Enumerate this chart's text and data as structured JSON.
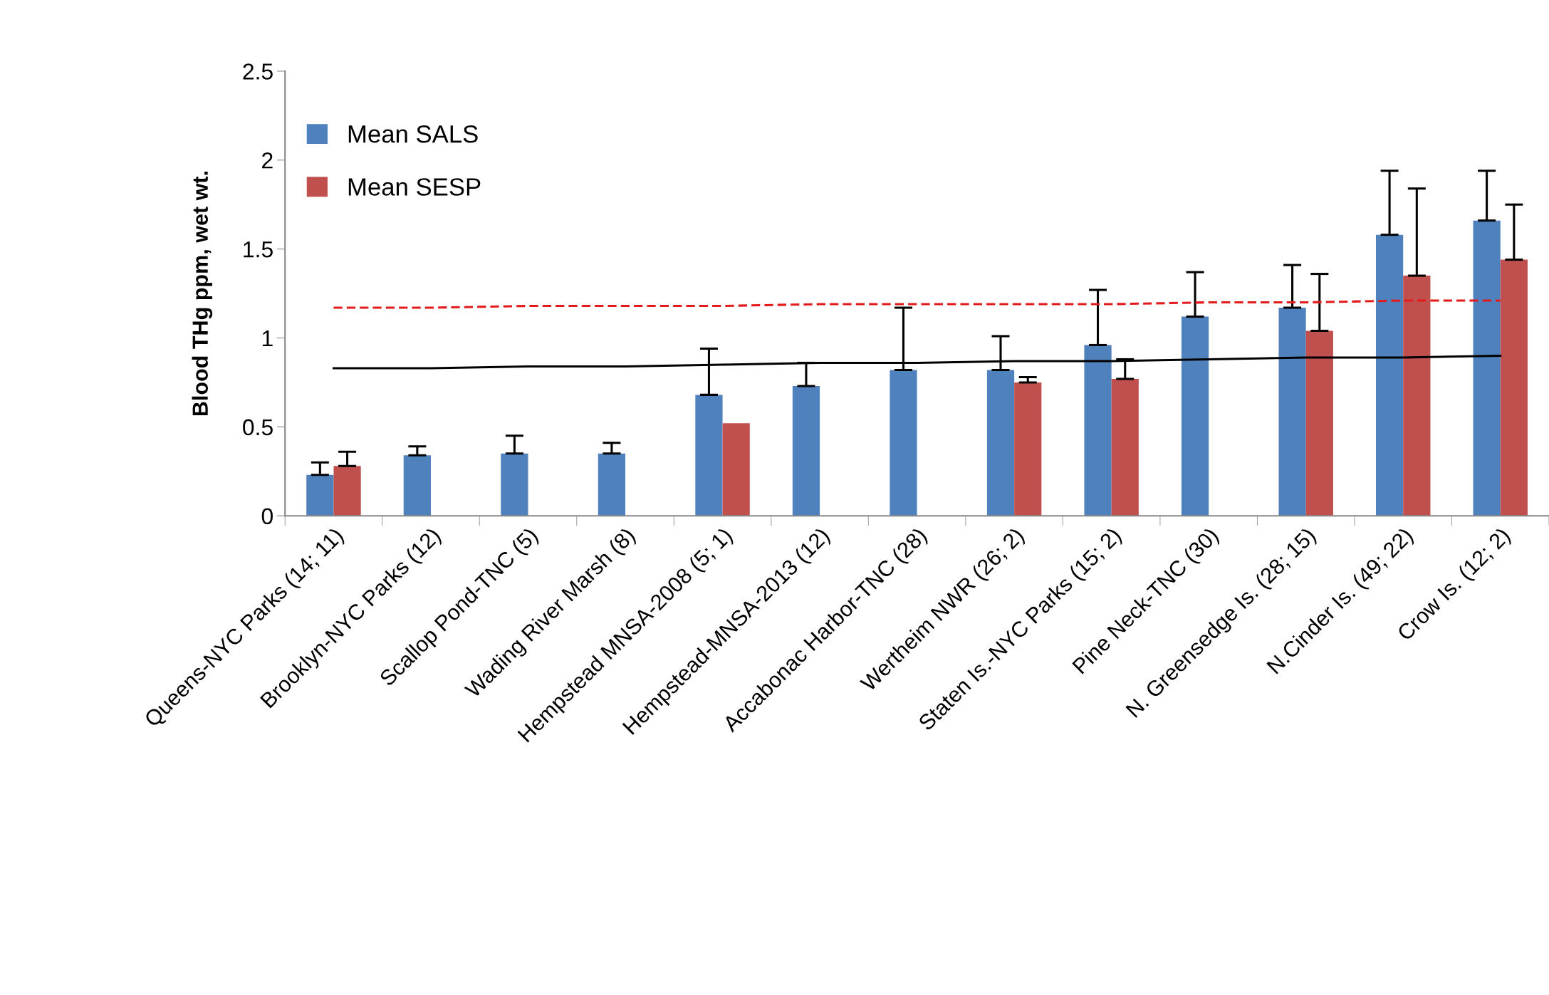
{
  "chart_data": {
    "type": "bar",
    "ylabel": "Blood THg ppm, wet wt.",
    "categories": [
      "Queens-NYC Parks (14; 11)",
      "Brooklyn-NYC Parks (12)",
      "Scallop Pond-TNC (5)",
      "Wading River Marsh (8)",
      "Hempstead MNSA-2008 (5; 1)",
      "Hempstead-MNSA-2013 (12)",
      "Accabonac Harbor-TNC (28)",
      "Wertheim NWR (26; 2)",
      "Staten Is.-NYC Parks (15; 2)",
      "Pine Neck-TNC (30)",
      "N. Greensedge Is. (28; 15)",
      "N.Cinder Is. (49; 22)",
      "Crow Is. (12; 2)"
    ],
    "series": [
      {
        "name": "Mean SALS",
        "color": "#4f81bd",
        "values": [
          0.23,
          0.34,
          0.35,
          0.35,
          0.68,
          0.73,
          0.82,
          0.82,
          0.96,
          1.12,
          1.17,
          1.58,
          1.66
        ],
        "errors": [
          [
            0.23,
            0.3
          ],
          [
            0.34,
            0.39
          ],
          [
            0.35,
            0.45
          ],
          [
            0.35,
            0.41
          ],
          [
            0.68,
            0.94
          ],
          [
            0.73,
            0.86
          ],
          [
            0.82,
            1.17
          ],
          [
            0.82,
            1.01
          ],
          [
            0.96,
            1.27
          ],
          [
            1.12,
            1.37
          ],
          [
            1.17,
            1.41
          ],
          [
            1.58,
            1.94
          ],
          [
            1.66,
            1.94
          ]
        ]
      },
      {
        "name": "Mean SESP",
        "color": "#c0504d",
        "values": [
          0.28,
          null,
          null,
          null,
          0.52,
          null,
          null,
          0.75,
          0.77,
          null,
          1.04,
          1.35,
          1.44
        ],
        "errors": [
          [
            0.28,
            0.36
          ],
          null,
          null,
          null,
          null,
          null,
          null,
          [
            0.75,
            0.78
          ],
          [
            0.77,
            0.88
          ],
          null,
          [
            1.04,
            1.36
          ],
          [
            1.35,
            1.84
          ],
          [
            1.44,
            1.75
          ]
        ]
      },
      {
        "type": "line",
        "color": "#000000",
        "line_style": "solid",
        "values": [
          0.83,
          0.83,
          0.84,
          0.84,
          0.85,
          0.86,
          0.86,
          0.87,
          0.87,
          0.88,
          0.89,
          0.89,
          0.9
        ]
      },
      {
        "type": "line",
        "color": "#e31a1c",
        "line_style": "dashed",
        "values": [
          1.17,
          1.17,
          1.18,
          1.18,
          1.18,
          1.19,
          1.19,
          1.19,
          1.19,
          1.2,
          1.2,
          1.21,
          1.21
        ]
      }
    ],
    "ylim": [
      0,
      2.5
    ],
    "yticks": [
      0,
      0.5,
      1,
      1.5,
      2,
      2.5
    ],
    "legend": "top left",
    "grid": false
  }
}
